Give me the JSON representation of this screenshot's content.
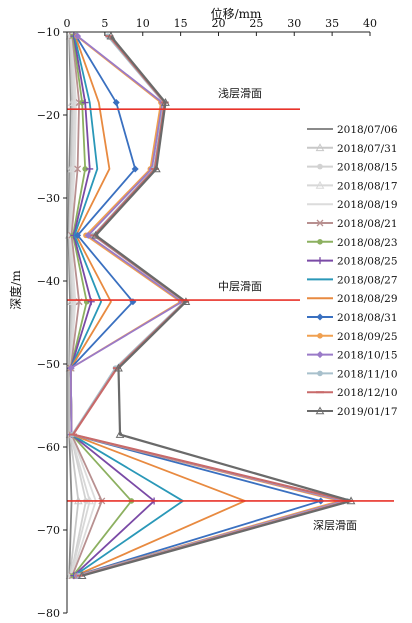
{
  "chart_data": {
    "type": "line",
    "title": "",
    "xlabel": "位移/mm",
    "ylabel": "深度/m",
    "xlim": [
      0,
      40
    ],
    "ylim": [
      -80,
      -10
    ],
    "x_ticks": [
      "0",
      "5",
      "10",
      "15",
      "20",
      "25",
      "30",
      "35",
      "40"
    ],
    "y_ticks": [
      "−10",
      "−20",
      "−30",
      "−40",
      "−50",
      "−60",
      "−70",
      "−80"
    ],
    "x_tick_values": [
      0,
      5,
      10,
      15,
      20,
      25,
      30,
      35,
      40
    ],
    "y_tick_values": [
      -10,
      -20,
      -30,
      -40,
      -50,
      -60,
      -70,
      -80
    ],
    "grid": false,
    "legend_position": "right",
    "depths": [
      -10.5,
      -18.5,
      -26.5,
      -34.5,
      -42.5,
      -50.5,
      -58.5,
      -66.5,
      -75.5
    ],
    "slip_surfaces": [
      {
        "label": "浅层滑面",
        "depth": -19.3,
        "color": "#e8332a"
      },
      {
        "label": "中层滑面",
        "depth": -42.3,
        "color": "#e8332a"
      },
      {
        "label": "深层滑面",
        "depth": -66.5,
        "color": "#e8332a"
      }
    ],
    "series": [
      {
        "name": "2018/07/06",
        "color": "#8a8a8a",
        "marker": "line",
        "values": [
          0.3,
          0.5,
          0.3,
          0.2,
          0.4,
          0.3,
          0.3,
          0.6,
          0.3
        ]
      },
      {
        "name": "2018/07/31",
        "color": "#c8c8c8",
        "marker": "tri",
        "values": [
          0.4,
          0.7,
          0.5,
          0.3,
          0.6,
          0.4,
          0.4,
          1.5,
          0.4
        ]
      },
      {
        "name": "2018/08/15",
        "color": "#d2d2d2",
        "marker": "circle",
        "values": [
          0.5,
          0.9,
          0.7,
          0.4,
          0.8,
          0.5,
          0.5,
          2.5,
          0.5
        ]
      },
      {
        "name": "2018/08/17",
        "color": "#d8d8d8",
        "marker": "tri",
        "values": [
          0.5,
          1.0,
          0.8,
          0.4,
          0.9,
          0.5,
          0.5,
          3.0,
          0.5
        ]
      },
      {
        "name": "2018/08/19",
        "color": "#dcdcdc",
        "marker": "line",
        "values": [
          0.6,
          1.2,
          1.0,
          0.5,
          1.1,
          0.5,
          0.6,
          3.8,
          0.6
        ]
      },
      {
        "name": "2018/08/21",
        "color": "#b89090",
        "marker": "x",
        "values": [
          0.7,
          1.6,
          1.4,
          0.6,
          1.6,
          0.5,
          0.6,
          4.6,
          0.7
        ]
      },
      {
        "name": "2018/08/23",
        "color": "#8cb060",
        "marker": "circle",
        "values": [
          0.8,
          2.0,
          2.4,
          0.8,
          2.6,
          0.5,
          0.6,
          8.5,
          0.8
        ]
      },
      {
        "name": "2018/08/25",
        "color": "#7a4aa6",
        "marker": "plus",
        "values": [
          0.9,
          2.4,
          3.0,
          0.9,
          3.2,
          0.5,
          0.6,
          11.5,
          0.9
        ]
      },
      {
        "name": "2018/08/27",
        "color": "#2a98b8",
        "marker": "line",
        "values": [
          1.0,
          3.0,
          4.0,
          1.0,
          4.5,
          0.5,
          0.6,
          15.3,
          1.0
        ]
      },
      {
        "name": "2018/08/29",
        "color": "#e88a40",
        "marker": "line",
        "values": [
          1.1,
          4.2,
          5.6,
          1.2,
          5.8,
          0.5,
          0.6,
          23.5,
          1.1
        ]
      },
      {
        "name": "2018/08/31",
        "color": "#3a70c0",
        "marker": "diamond",
        "values": [
          1.2,
          6.5,
          9.0,
          1.4,
          8.7,
          0.5,
          0.6,
          33.5,
          1.2
        ]
      },
      {
        "name": "2018/09/25",
        "color": "#f0a050",
        "marker": "circle",
        "values": [
          1.3,
          12.4,
          11.0,
          2.5,
          15.0,
          0.5,
          0.6,
          36.0,
          1.3
        ]
      },
      {
        "name": "2018/10/15",
        "color": "#9a7ac8",
        "marker": "diamond",
        "values": [
          1.4,
          12.6,
          11.2,
          2.8,
          15.2,
          0.5,
          0.6,
          36.5,
          1.4
        ]
      },
      {
        "name": "2018/11/10",
        "color": "#a8c0cc",
        "marker": "circle",
        "values": [
          5.4,
          12.8,
          11.5,
          3.5,
          15.5,
          6.4,
          0.7,
          37.0,
          1.6
        ]
      },
      {
        "name": "2018/12/10",
        "color": "#c86a6a",
        "marker": "dash",
        "values": [
          5.6,
          12.9,
          11.6,
          3.6,
          15.6,
          6.6,
          0.8,
          37.2,
          1.8
        ]
      },
      {
        "name": "2019/01/17",
        "color": "#6a6a6a",
        "marker": "tri",
        "values": [
          5.8,
          13.0,
          11.8,
          3.8,
          15.7,
          6.8,
          7.0,
          37.5,
          2.0
        ]
      }
    ]
  }
}
